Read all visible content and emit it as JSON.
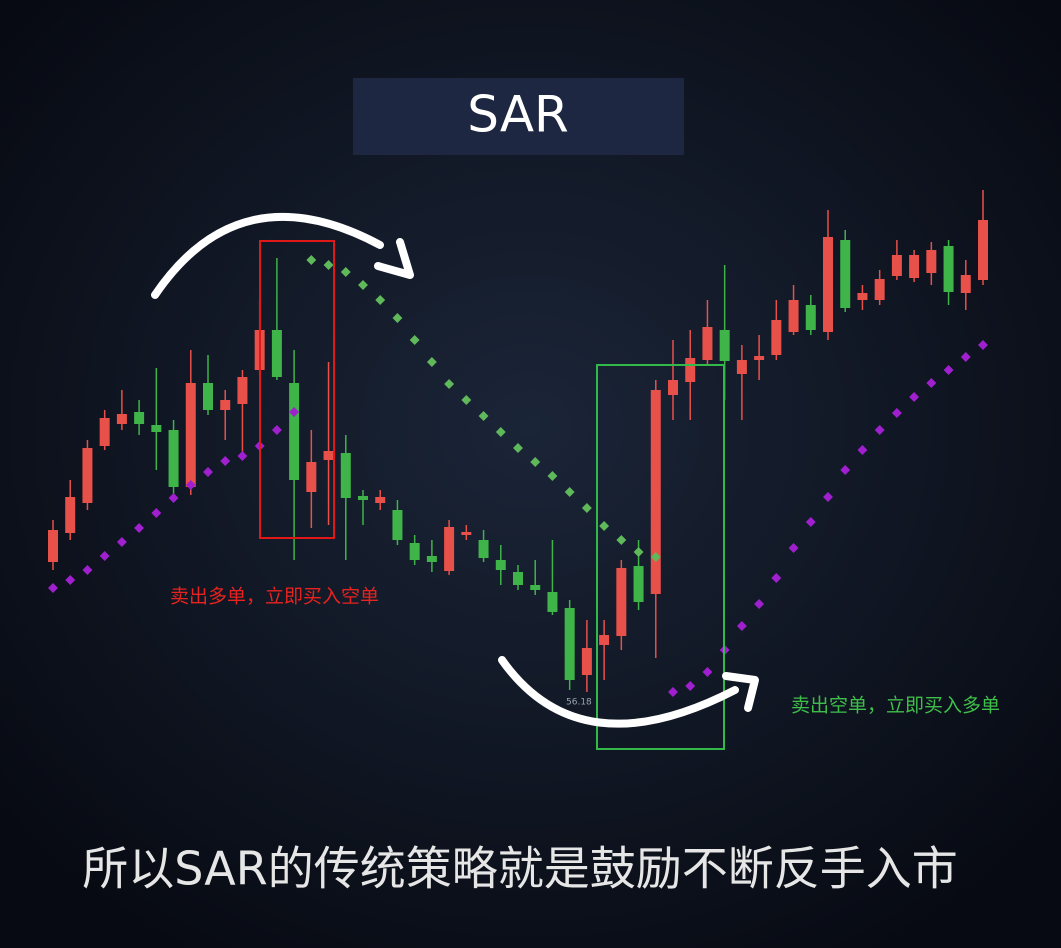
{
  "chart_data": {
    "type": "candlestick",
    "title": "SAR",
    "caption": "所以SAR的传统策略就是鼓励不断反手入市",
    "annotations": [
      {
        "text": "卖出多单，立即买入空单",
        "color": "#e8231f"
      },
      {
        "text": "卖出空单，立即买入多单",
        "color": "#3fbf4a"
      }
    ],
    "ylim": [
      55,
      67
    ],
    "up_color": "#e8504a",
    "down_color": "#3fb449",
    "price_label": 56.18,
    "open": [
      58.78,
      59.36,
      59.96,
      61.1,
      61.54,
      61.78,
      61.52,
      61.42,
      60.28,
      62.36,
      61.82,
      61.94,
      62.62,
      63.42,
      62.36,
      60.18,
      60.82,
      60.96,
      60.1,
      59.96,
      59.82,
      59.16,
      58.9,
      58.6,
      59.32,
      59.22,
      58.82,
      58.58,
      58.32,
      58.18,
      57.86,
      56.52,
      57.12,
      57.3,
      58.7,
      58.14,
      62.12,
      62.38,
      62.82,
      63.42,
      62.54,
      62.82,
      62.92,
      63.38,
      63.92,
      63.38,
      65.22,
      64.02,
      64.02,
      64.5,
      64.46,
      64.56,
      65.1,
      64.16,
      64.42
    ],
    "high": [
      59.62,
      60.42,
      61.22,
      61.82,
      62.22,
      62.02,
      62.66,
      61.62,
      63.02,
      62.92,
      62.22,
      62.62,
      64.02,
      64.86,
      63.02,
      61.42,
      62.78,
      61.32,
      60.22,
      60.22,
      60.02,
      59.32,
      59.22,
      59.62,
      59.52,
      59.42,
      59.12,
      58.72,
      58.82,
      59.22,
      58.02,
      57.62,
      57.62,
      58.82,
      59.22,
      62.42,
      63.22,
      63.42,
      64.02,
      64.72,
      63.12,
      63.32,
      64.02,
      64.32,
      64.12,
      65.82,
      65.42,
      64.32,
      64.62,
      65.22,
      65.02,
      65.18,
      65.22,
      64.82,
      66.22
    ],
    "low": [
      58.62,
      59.22,
      59.82,
      61.02,
      61.42,
      61.32,
      60.62,
      60.02,
      60.12,
      61.72,
      61.22,
      60.92,
      62.52,
      62.42,
      58.82,
      59.46,
      59.52,
      58.82,
      59.52,
      59.82,
      59.12,
      58.72,
      58.58,
      58.52,
      59.22,
      58.78,
      58.32,
      58.22,
      58.12,
      57.72,
      56.22,
      56.18,
      56.42,
      57.02,
      57.82,
      56.86,
      61.62,
      61.62,
      62.72,
      62.02,
      61.62,
      62.42,
      62.82,
      63.32,
      63.32,
      63.22,
      63.78,
      63.82,
      63.92,
      64.42,
      64.38,
      64.32,
      63.92,
      63.82,
      64.32
    ],
    "close": [
      59.42,
      60.08,
      61.06,
      61.66,
      61.74,
      61.54,
      61.38,
      60.28,
      62.36,
      61.82,
      62.02,
      62.48,
      63.42,
      62.48,
      60.42,
      60.78,
      61.0,
      60.06,
      60.02,
      60.08,
      59.22,
      58.82,
      58.78,
      59.48,
      59.38,
      58.86,
      58.62,
      58.32,
      58.22,
      57.78,
      56.42,
      57.06,
      57.32,
      58.66,
      57.98,
      62.22,
      62.42,
      62.86,
      63.48,
      62.8,
      62.82,
      62.9,
      63.62,
      64.02,
      63.42,
      65.28,
      63.86,
      64.16,
      64.44,
      64.92,
      64.92,
      65.02,
      64.18,
      64.52,
      65.62
    ],
    "sar": [
      {
        "color": "#a020d0",
        "values": [
          58.26,
          58.42,
          58.62,
          58.9,
          59.18,
          59.46,
          59.76,
          60.06,
          60.32,
          60.58,
          60.8,
          60.9,
          61.1,
          61.42,
          61.78,
          null,
          null,
          null,
          null,
          null,
          null,
          null,
          null,
          null,
          null,
          null,
          null,
          null,
          null,
          null,
          null,
          null,
          null,
          null,
          null,
          null,
          56.18,
          56.3,
          56.58,
          57.02,
          57.5,
          57.94,
          58.46,
          59.06,
          59.58,
          60.08,
          60.62,
          61.02,
          61.42,
          61.76,
          62.08,
          62.36,
          62.62,
          62.88,
          63.12
        ]
      },
      {
        "color": "#5fb85a",
        "values": [
          null,
          null,
          null,
          null,
          null,
          null,
          null,
          null,
          null,
          null,
          null,
          null,
          null,
          null,
          null,
          64.82,
          64.72,
          64.58,
          64.32,
          64.02,
          63.66,
          63.22,
          62.78,
          62.34,
          62.02,
          61.7,
          61.38,
          61.06,
          60.78,
          60.5,
          60.18,
          59.86,
          59.5,
          59.22,
          58.98,
          58.88,
          null,
          null,
          null,
          null,
          null,
          null,
          null,
          null,
          null,
          null,
          null,
          null,
          null,
          null,
          null,
          null,
          null,
          null,
          null
        ]
      }
    ]
  }
}
